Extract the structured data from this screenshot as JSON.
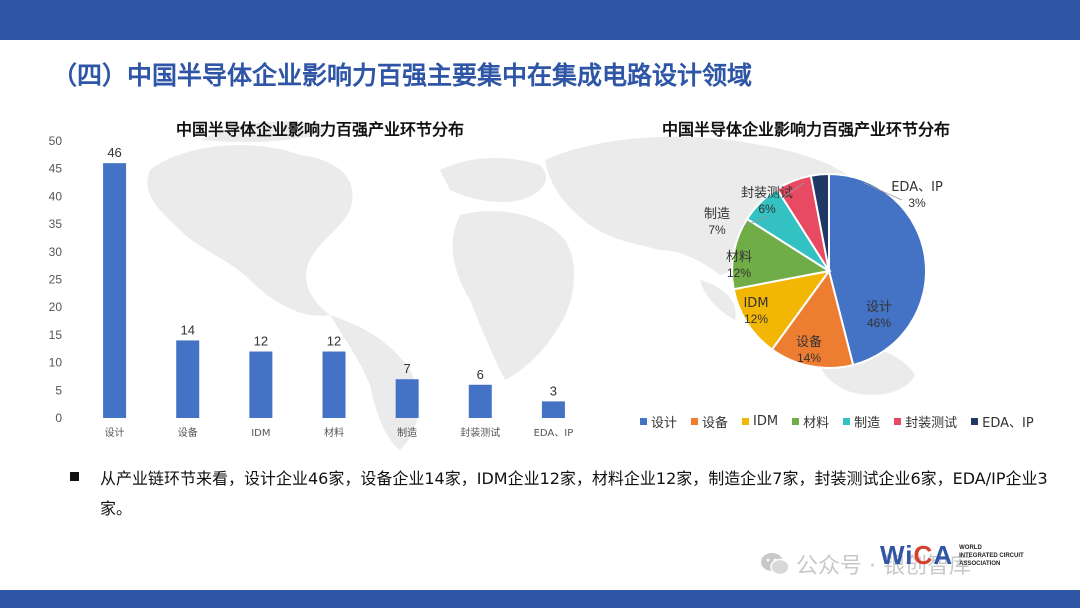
{
  "page": {
    "title": "（四）中国半导体企业影响力百强主要集中在集成电路设计领域"
  },
  "bullet": {
    "text": "从产业链环节来看，设计企业46家，设备企业14家，IDM企业12家，材料企业12家，制造企业7家，封装测试企业6家，EDA/IP企业3家。"
  },
  "watermark": {
    "text": "公众号 · 银创智库"
  },
  "logo": {
    "word_left": "Wi",
    "word_mid": "C",
    "word_right": "A",
    "line1": "WORLD",
    "line2": "INTEGRATED CIRCUIT",
    "line3": "ASSOCIATION"
  },
  "chart_data": [
    {
      "type": "bar",
      "title": "中国半导体企业影响力百强产业环节分布",
      "categories": [
        "设计",
        "设备",
        "IDM",
        "材料",
        "制造",
        "封装测试",
        "EDA、IP"
      ],
      "values": [
        46,
        14,
        12,
        12,
        7,
        6,
        3
      ],
      "ylim": [
        0,
        50
      ],
      "yticks": [
        0,
        5,
        10,
        15,
        20,
        25,
        30,
        35,
        40,
        45,
        50
      ],
      "color": "#4472c4",
      "grid": false
    },
    {
      "type": "pie",
      "title": "中国半导体企业影响力百强产业环节分布",
      "categories": [
        "设计",
        "设备",
        "IDM",
        "材料",
        "制造",
        "封装测试",
        "EDA、IP"
      ],
      "values": [
        46,
        14,
        12,
        12,
        7,
        6,
        3
      ],
      "labels": [
        "46%",
        "14%",
        "12%",
        "12%",
        "7%",
        "6%",
        "3%"
      ],
      "colors": [
        "#4472c4",
        "#ed7d31",
        "#f2b705",
        "#70ad47",
        "#33c1c1",
        "#e84a63",
        "#203864"
      ],
      "legend": "bottom"
    }
  ]
}
